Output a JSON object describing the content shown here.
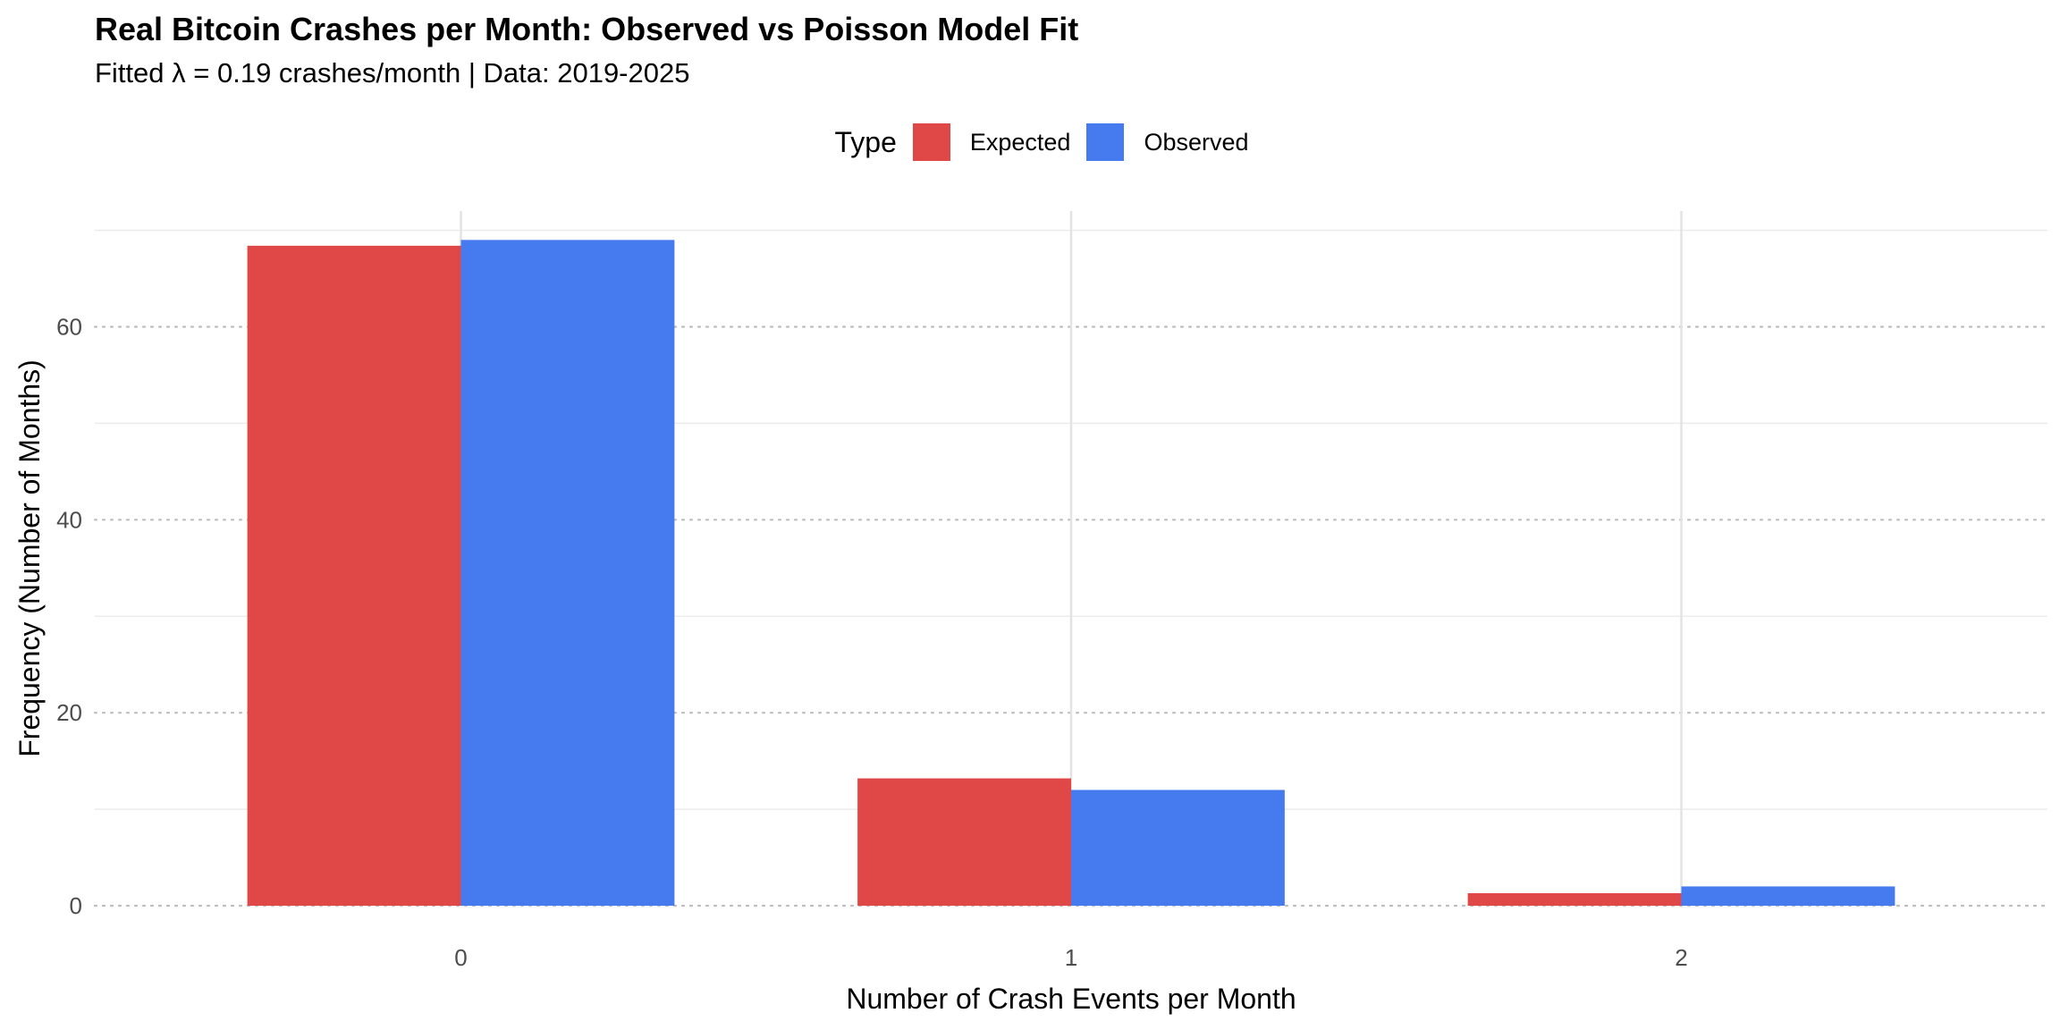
{
  "chart_data": {
    "type": "bar",
    "title": "Real Bitcoin Crashes per Month: Observed vs Poisson Model Fit",
    "subtitle": "Fitted λ = 0.19 crashes/month | Data: 2019-2025",
    "xlabel": "Number of Crash Events per Month",
    "ylabel": "Frequency (Number of Months)",
    "categories": [
      "0",
      "1",
      "2"
    ],
    "ylim": [
      0,
      72
    ],
    "yticks": [
      0,
      20,
      40,
      60
    ],
    "grid": true,
    "legend_title": "Type",
    "legend_position": "top",
    "series": [
      {
        "name": "Expected",
        "color": "#E04747",
        "values": [
          68.4,
          13.2,
          1.3
        ]
      },
      {
        "name": "Observed",
        "color": "#467BEF",
        "values": [
          69.0,
          12.0,
          2.0
        ]
      }
    ]
  }
}
